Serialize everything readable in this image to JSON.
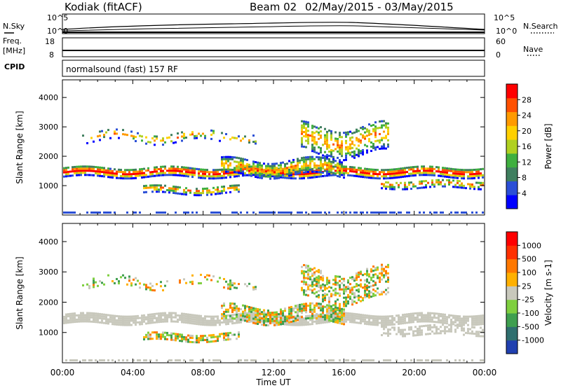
{
  "header": {
    "station": "Kodiak (fitACF)",
    "beam_label": "Beam 02",
    "date_range": "02/May/2015 - 03/May/2015"
  },
  "side_labels": {
    "nsky": "N.Sky",
    "nsearch": "N.Search",
    "freq": "Freq.",
    "freq_unit": "[MHz]",
    "nave": "Nave",
    "cpid": "CPID"
  },
  "cpid_text": "normalsound (fast) 157 RF",
  "noise_axis": {
    "left_ticks": [
      "10^5",
      "10^0"
    ],
    "right_ticks": [
      "10^5",
      "10^0"
    ]
  },
  "freq_axis": {
    "left_ticks": [
      "18",
      "8"
    ],
    "right_ticks": [
      "60",
      "0"
    ]
  },
  "chart_data": [
    {
      "type": "heatmap",
      "title": "",
      "xlabel": "Time UT",
      "ylabel": "Slant Range [km]",
      "xlim": [
        0,
        24
      ],
      "ylim": [
        0,
        4600
      ],
      "x_ticks": [
        "00:00",
        "04:00",
        "08:00",
        "12:00",
        "16:00",
        "20:00",
        "00:00"
      ],
      "y_ticks": [
        1000,
        2000,
        3000,
        4000
      ],
      "colorbar": {
        "label": "Power [dB]",
        "ticks": [
          "28",
          "24",
          "20",
          "16",
          "12",
          "8",
          "4"
        ],
        "colors": [
          "#0000ff",
          "#2b4fd6",
          "#3f7f5f",
          "#3faf3f",
          "#b0d020",
          "#ffd000",
          "#ff9a00",
          "#ff5000",
          "#ff0000"
        ]
      }
    },
    {
      "type": "heatmap",
      "title": "",
      "xlabel": "Time UT",
      "ylabel": "Slant Range [km]",
      "xlim": [
        0,
        24
      ],
      "ylim": [
        0,
        4600
      ],
      "x_ticks": [
        "00:00",
        "04:00",
        "08:00",
        "12:00",
        "16:00",
        "20:00",
        "00:00"
      ],
      "y_ticks": [
        1000,
        2000,
        3000,
        4000
      ],
      "colorbar": {
        "label": "Velocity [m s-1]",
        "ticks": [
          "1000",
          "500",
          "100",
          "25",
          "-25",
          "-100",
          "-500",
          "-1000"
        ],
        "colors": [
          "#2040b0",
          "#2f6f6f",
          "#3f9f4f",
          "#7fcf3f",
          "#c8c8bc",
          "#ffb000",
          "#ff7800",
          "#ff3000",
          "#ff0000"
        ]
      }
    }
  ]
}
